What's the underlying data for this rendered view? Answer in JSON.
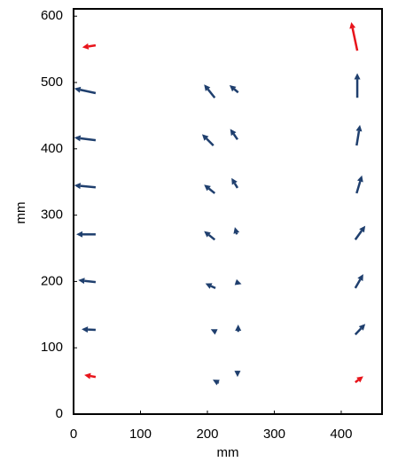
{
  "chart_data": {
    "type": "quiver",
    "xlabel": "mm",
    "ylabel": "mm",
    "xlim": [
      0,
      461
    ],
    "ylim": [
      0,
      611
    ],
    "xticks": [
      0,
      100,
      200,
      300,
      400
    ],
    "yticks": [
      0,
      100,
      200,
      300,
      400,
      500,
      600
    ],
    "series": [
      {
        "color": "#1f3f6e",
        "x": [
          33,
          33,
          33,
          33,
          33,
          33,
          211,
          209,
          211,
          211,
          212,
          213,
          217,
          246,
          245,
          245,
          244,
          242,
          246,
          245,
          424,
          423,
          423,
          421,
          421,
          421
        ],
        "y": [
          484,
          413,
          342,
          271,
          199,
          127,
          477,
          405,
          333,
          263,
          190,
          124,
          47,
          485,
          414,
          341,
          271,
          199,
          124,
          65,
          477,
          405,
          333,
          263,
          190,
          120
        ],
        "u": [
          -32,
          -32,
          -32,
          -29,
          -26,
          -21,
          -16,
          -17,
          -16,
          -16,
          -15,
          -8,
          -9,
          -13,
          -11,
          -9,
          -3,
          9,
          0,
          0,
          0,
          5,
          8,
          15,
          12,
          15
        ],
        "v": [
          7,
          4,
          3,
          0,
          3,
          1,
          20,
          17,
          13,
          13,
          7,
          4,
          5,
          11,
          16,
          15,
          11,
          -3,
          11,
          -9,
          37,
          31,
          27,
          21,
          21,
          16
        ]
      },
      {
        "color": "#e8141b",
        "x": [
          33,
          33,
          421,
          424
        ],
        "y": [
          556,
          56,
          48,
          548
        ],
        "u": [
          -20,
          -17,
          12,
          -9
        ],
        "v": [
          -3,
          3,
          9,
          43
        ]
      }
    ]
  }
}
